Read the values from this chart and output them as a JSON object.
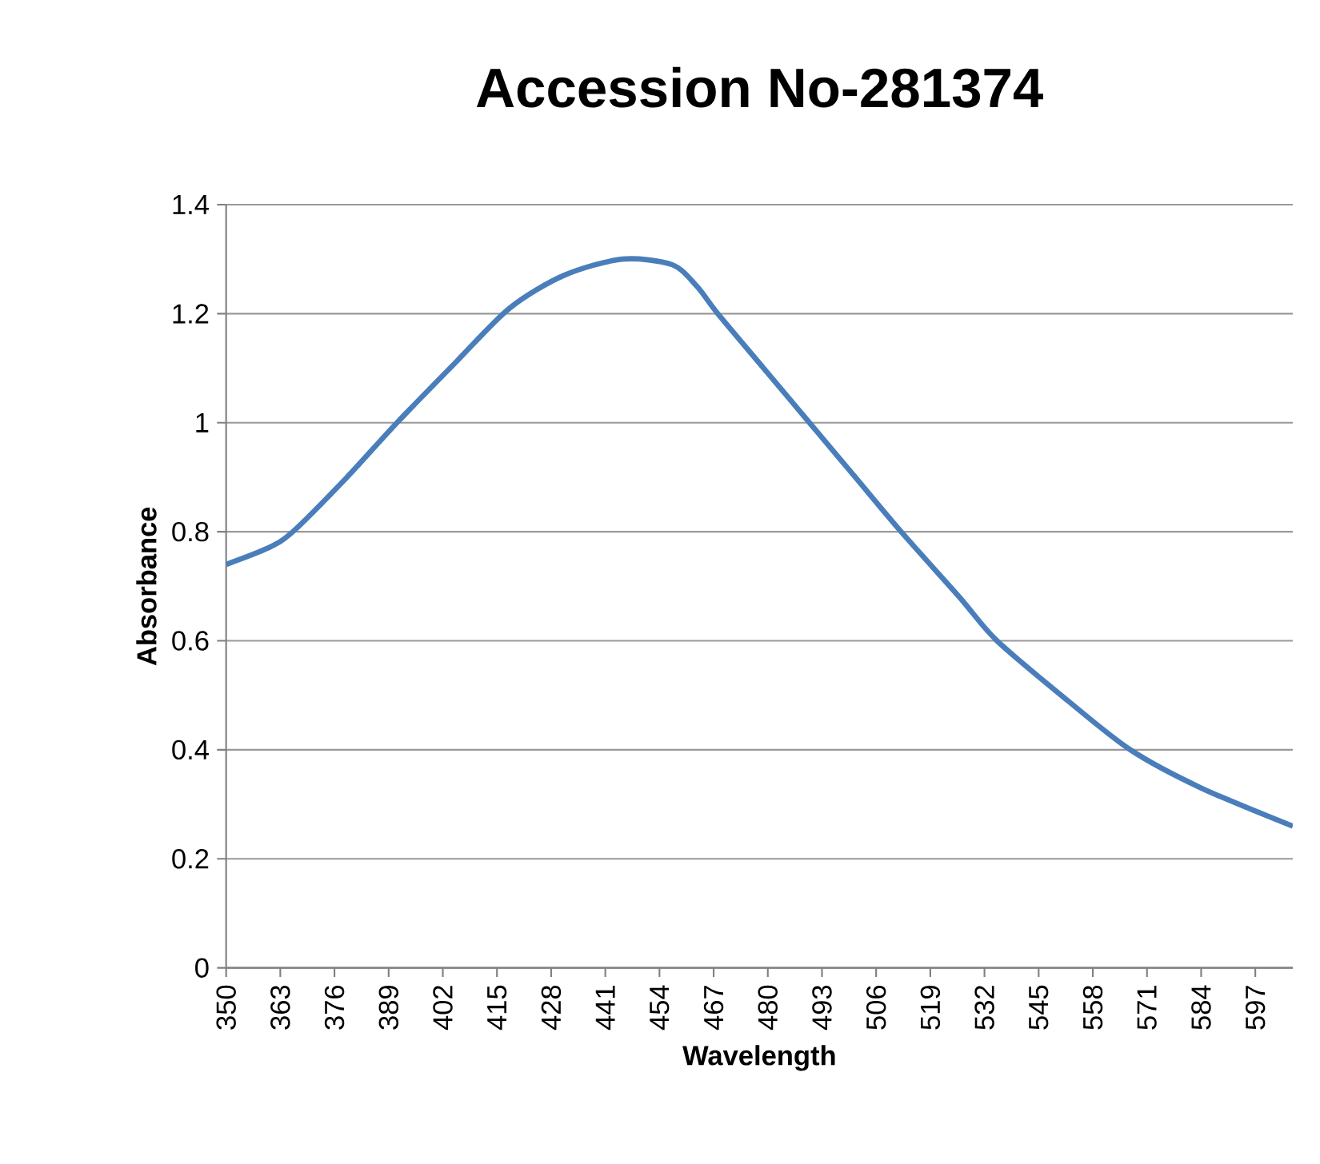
{
  "chart_data": {
    "type": "line",
    "title": "Accession No-281374",
    "xlabel": "Wavelength",
    "ylabel": "Absorbance",
    "x": [
      350,
      360,
      366,
      379,
      391,
      405,
      418,
      431,
      445,
      457,
      463,
      468,
      479,
      490,
      501,
      512,
      526,
      535,
      552,
      567,
      584,
      606
    ],
    "series": [
      {
        "color": "#4a7ebb",
        "values": [
          0.74,
          0.77,
          0.8,
          0.9,
          1.0,
          1.11,
          1.21,
          1.27,
          1.3,
          1.29,
          1.25,
          1.2,
          1.1,
          1.0,
          0.9,
          0.8,
          0.68,
          0.6,
          0.49,
          0.4,
          0.33,
          0.26
        ]
      }
    ],
    "xlim": [
      350,
      606
    ],
    "xticks": [
      350,
      363,
      376,
      389,
      402,
      415,
      428,
      441,
      454,
      467,
      480,
      493,
      506,
      519,
      532,
      545,
      558,
      571,
      584,
      597
    ],
    "ylim": [
      0,
      1.4
    ],
    "yticks": [
      0,
      0.2,
      0.4,
      0.6,
      0.8,
      1,
      1.2,
      1.4
    ],
    "grid": "y",
    "marker": "none",
    "line_style": "solid"
  }
}
